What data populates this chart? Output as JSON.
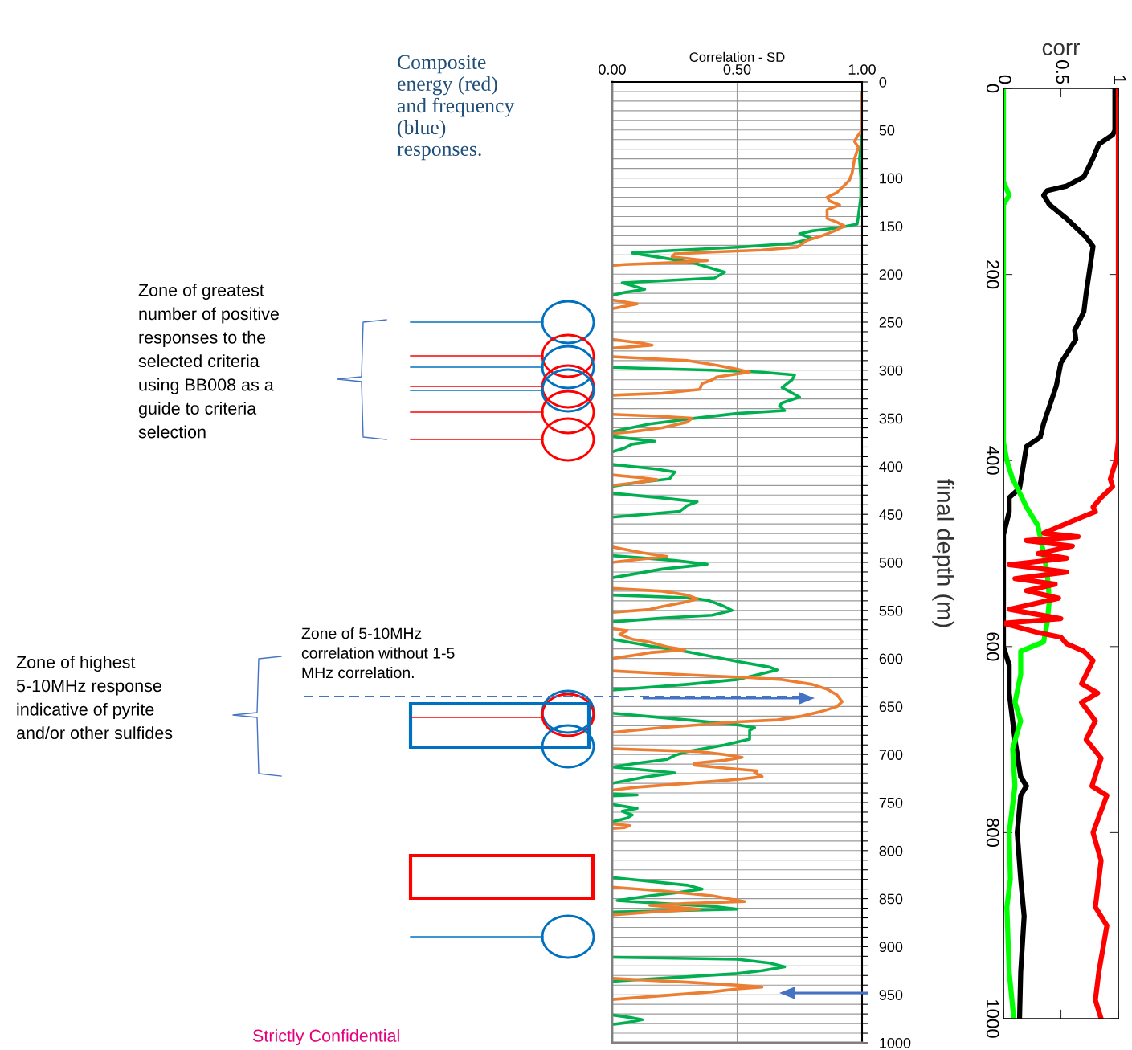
{
  "chart_data": [
    {
      "type": "line",
      "orientation": "horizontal",
      "xlabel": "Correlation - SD",
      "xlim": [
        0,
        1
      ],
      "xticks": [
        {
          "value": 0,
          "label": "0.00"
        },
        {
          "value": 0.5,
          "label": "0.50"
        },
        {
          "value": 1,
          "label": "1.00"
        }
      ],
      "ylim": [
        1000,
        0
      ],
      "yticks": [
        0,
        {
          "value": 10,
          "label": null
        },
        {
          "value": 20,
          "label": null
        },
        {
          "value": 30,
          "label": null
        },
        {
          "value": 40,
          "label": null
        },
        50,
        {
          "value": 60,
          "label": null
        },
        {
          "value": 70,
          "label": null
        },
        {
          "value": 80,
          "label": null
        },
        {
          "value": 90,
          "label": null
        },
        100,
        {
          "value": 110,
          "label": null
        },
        {
          "value": 120,
          "label": null
        },
        {
          "value": 130,
          "label": null
        },
        {
          "value": 140,
          "label": null
        },
        150,
        {
          "value": 160,
          "label": null
        },
        {
          "value": 170,
          "label": null
        },
        {
          "value": 180,
          "label": null
        },
        {
          "value": 190,
          "label": null
        },
        200,
        {
          "value": 210,
          "label": null
        },
        {
          "value": 220,
          "label": null
        },
        {
          "value": 230,
          "label": null
        },
        {
          "value": 240,
          "label": null
        },
        250,
        {
          "value": 260,
          "label": null
        },
        {
          "value": 270,
          "label": null
        },
        {
          "value": 280,
          "label": null
        },
        {
          "value": 290,
          "label": null
        },
        300,
        {
          "value": 310,
          "label": null
        },
        {
          "value": 320,
          "label": null
        },
        {
          "value": 330,
          "label": null
        },
        {
          "value": 340,
          "label": null
        },
        350,
        {
          "value": 360,
          "label": null
        },
        {
          "value": 370,
          "label": null
        },
        {
          "value": 380,
          "label": null
        },
        {
          "value": 390,
          "label": null
        },
        400,
        {
          "value": 410,
          "label": null
        },
        {
          "value": 420,
          "label": null
        },
        {
          "value": 430,
          "label": null
        },
        {
          "value": 440,
          "label": null
        },
        450,
        {
          "value": 460,
          "label": null
        },
        {
          "value": 470,
          "label": null
        },
        {
          "value": 480,
          "label": null
        },
        {
          "value": 490,
          "label": null
        },
        500,
        {
          "value": 510,
          "label": null
        },
        {
          "value": 520,
          "label": null
        },
        {
          "value": 530,
          "label": null
        },
        {
          "value": 540,
          "label": null
        },
        550,
        {
          "value": 560,
          "label": null
        },
        {
          "value": 570,
          "label": null
        },
        {
          "value": 580,
          "label": null
        },
        {
          "value": 590,
          "label": null
        },
        600,
        {
          "value": 610,
          "label": null
        },
        {
          "value": 620,
          "label": null
        },
        {
          "value": 630,
          "label": null
        },
        {
          "value": 640,
          "label": null
        },
        650,
        {
          "value": 660,
          "label": null
        },
        {
          "value": 670,
          "label": null
        },
        {
          "value": 680,
          "label": null
        },
        {
          "value": 690,
          "label": null
        },
        700,
        {
          "value": 710,
          "label": null
        },
        {
          "value": 720,
          "label": null
        },
        {
          "value": 730,
          "label": null
        },
        {
          "value": 740,
          "label": null
        },
        750,
        {
          "value": 760,
          "label": null
        },
        {
          "value": 770,
          "label": null
        },
        {
          "value": 780,
          "label": null
        },
        {
          "value": 790,
          "label": null
        },
        800,
        {
          "value": 810,
          "label": null
        },
        {
          "value": 820,
          "label": null
        },
        {
          "value": 830,
          "label": null
        },
        {
          "value": 840,
          "label": null
        },
        850,
        {
          "value": 860,
          "label": null
        },
        {
          "value": 870,
          "label": null
        },
        {
          "value": 880,
          "label": null
        },
        {
          "value": 890,
          "label": null
        },
        900,
        {
          "value": 910,
          "label": null
        },
        {
          "value": 920,
          "label": null
        },
        {
          "value": 930,
          "label": null
        },
        {
          "value": 940,
          "label": null
        },
        950,
        {
          "value": 960,
          "label": null
        },
        {
          "value": 970,
          "label": null
        },
        {
          "value": 980,
          "label": null
        },
        {
          "value": 990,
          "label": null
        },
        1000
      ],
      "grid": true,
      "series": [
        {
          "color": "#00b050",
          "x": [
            55,
            80,
            100,
            120,
            140,
            148,
            152,
            155,
            158,
            163,
            168,
            172,
            176,
            178,
            183,
            188,
            198,
            204,
            207,
            209,
            212,
            216,
            219,
            222,
            260,
            297,
            300,
            302,
            305,
            310,
            318,
            328,
            334,
            337,
            342,
            345,
            350,
            356,
            364,
            366,
            369,
            374,
            377,
            381,
            385,
            392,
            398,
            403,
            406,
            413,
            417,
            421,
            425,
            428,
            433,
            437,
            441,
            447,
            453,
            473,
            493,
            498,
            502,
            507,
            516,
            525,
            534,
            537,
            540,
            546,
            550,
            555,
            558,
            562,
            571,
            580,
            587,
            593,
            603,
            609,
            612,
            617,
            622,
            627,
            633,
            645,
            657,
            664,
            669,
            672,
            675,
            677,
            684,
            690,
            697,
            701,
            705,
            709,
            713,
            719,
            724,
            730,
            736,
            741,
            742,
            743,
            747,
            752,
            756,
            759,
            763,
            766,
            770,
            800,
            828,
            836,
            840,
            844,
            847,
            852,
            855,
            858,
            861,
            864,
            890,
            911,
            913,
            917,
            921,
            925,
            928,
            936,
            955,
            971,
            974,
            976,
            979,
            981
          ],
          "values": [
            1.0,
            0.99,
            0.995,
            0.995,
            0.985,
            0.98,
            0.9,
            0.8,
            0.75,
            0.8,
            0.72,
            0.5,
            0.2,
            0.08,
            0.2,
            0.32,
            0.45,
            0.41,
            0.2,
            0.04,
            0.08,
            0.13,
            0.05,
            0,
            null,
            0,
            0.4,
            0.6,
            0.73,
            0.72,
            0.68,
            0.75,
            0.68,
            0.67,
            0.69,
            0.5,
            0.33,
            0.15,
            0,
            null,
            0,
            0.17,
            0.08,
            0.05,
            0,
            null,
            0,
            0.18,
            0.25,
            0.23,
            0.1,
            0,
            null,
            0,
            0.2,
            0.34,
            0.3,
            0.27,
            0,
            null,
            0,
            0.25,
            0.38,
            0.2,
            0,
            null,
            0,
            0.32,
            0.39,
            0.45,
            0.48,
            0.4,
            0.2,
            0,
            null,
            0,
            0.15,
            0.3,
            0.5,
            0.63,
            0.66,
            0.58,
            0.5,
            0.3,
            0,
            null,
            0,
            0.3,
            0.5,
            0.57,
            0.55,
            0.55,
            0.55,
            0.45,
            0.3,
            0.25,
            0.22,
            0.1,
            0,
            0.25,
            0.12,
            0,
            null,
            0,
            0.1,
            0,
            null,
            0,
            0.1,
            0.04,
            0.08,
            0.06,
            0,
            null,
            0,
            0.3,
            0.36,
            0.25,
            0.15,
            0.02,
            0.2,
            0.4,
            0.5,
            0,
            null,
            0,
            0.5,
            0.63,
            0.69,
            0.6,
            0.5,
            0,
            null,
            0,
            0.08,
            0.12,
            0.06,
            0
          ]
        },
        {
          "color": "#ed7d31",
          "x": [
            10,
            30,
            50,
            57,
            62,
            68,
            80,
            95,
            102,
            110,
            115,
            120,
            124,
            128,
            133,
            142,
            146,
            150,
            155,
            160,
            165,
            172,
            175,
            177,
            179,
            182,
            186,
            188,
            190,
            191,
            209,
            227,
            231,
            234,
            236,
            252,
            268,
            272,
            274,
            276,
            277,
            282,
            286,
            290,
            295,
            299,
            302,
            304,
            307,
            310,
            314,
            320,
            324,
            326,
            336,
            346,
            348,
            350,
            354,
            360,
            364,
            366,
            388,
            409,
            412,
            414,
            417,
            420,
            452,
            484,
            490,
            494,
            497,
            500,
            514,
            527,
            530,
            534,
            538,
            542,
            546,
            549,
            552,
            560,
            569,
            571,
            575,
            580,
            583,
            588,
            591,
            594,
            597,
            600,
            606,
            613,
            617,
            620,
            622,
            627,
            632,
            638,
            645,
            650,
            655,
            660,
            664,
            666,
            668,
            672,
            677,
            685,
            694,
            697,
            700,
            703,
            706,
            709,
            711,
            714,
            717,
            719,
            723,
            726,
            730,
            734,
            737,
            755,
            772,
            774,
            776,
            777,
            808,
            838,
            842,
            847,
            853,
            855,
            857,
            859,
            861,
            864,
            867,
            900,
            933,
            937,
            940,
            942,
            944,
            947,
            951,
            955
          ],
          "values": [
            1.0,
            1.0,
            1.0,
            0.98,
            0.97,
            0.985,
            0.97,
            0.96,
            0.95,
            0.92,
            0.9,
            0.86,
            0.87,
            0.91,
            0.86,
            0.86,
            0.9,
            0.93,
            0.89,
            0.84,
            0.78,
            0.74,
            0.6,
            0.4,
            0.25,
            0.24,
            0.38,
            0.25,
            0.05,
            0,
            null,
            0,
            0.1,
            0.04,
            0,
            null,
            0,
            0.12,
            0.16,
            0.06,
            0,
            null,
            0,
            0.3,
            0.42,
            0.5,
            0.55,
            0.5,
            0.42,
            0.4,
            0.36,
            0.35,
            0.2,
            0,
            null,
            0,
            0.2,
            0.32,
            0.3,
            0.2,
            0.08,
            0,
            null,
            0,
            0.12,
            0.18,
            0.1,
            0,
            null,
            0,
            0.12,
            0.22,
            0.1,
            0,
            null,
            0,
            0.2,
            0.3,
            0.34,
            0.28,
            0.2,
            0.15,
            0,
            null,
            0,
            0.06,
            0.03,
            0.08,
            0.15,
            0.22,
            0.29,
            0.15,
            0.08,
            0,
            null,
            0,
            0.3,
            0.55,
            0.68,
            0.8,
            0.86,
            0.9,
            0.92,
            0.9,
            0.84,
            0.76,
            0.66,
            0.5,
            0.4,
            0.2,
            0,
            null,
            0,
            0.35,
            0.45,
            0.52,
            0.45,
            0.33,
            0.33,
            0.45,
            0.58,
            0.57,
            0.6,
            0.5,
            0.3,
            0.1,
            0,
            null,
            0,
            0.07,
            0.05,
            0,
            null,
            0,
            0.2,
            0.4,
            0.53,
            0.3,
            0.15,
            0.25,
            0.35,
            0.15,
            0,
            null,
            0,
            0.3,
            0.5,
            0.6,
            0.5,
            0.4,
            0.2,
            0
          ]
        }
      ],
      "annotations": [
        "Composite energy (red) and frequency (blue) responses.",
        "Zone of greatest number of positive responses to the selected criteria using BB008 as a guide to criteria selection",
        "Zone of 5-10MHz correlation without 1-5 MHz correlation.",
        "Zone of highest 5-10MHz response indicative of pyrite and/or other sulfides",
        "Strictly Confidential"
      ]
    },
    {
      "type": "line",
      "orientation": "horizontal",
      "xlabel": "corr",
      "ylabel": "final depth (m)",
      "xlim": [
        0,
        1
      ],
      "xticks": [
        0,
        0.5,
        1
      ],
      "ylim": [
        1000,
        0
      ],
      "yticks": [
        0,
        200,
        400,
        600,
        800,
        1000
      ],
      "series": [
        {
          "color": "#000000",
          "x": [
            0,
            45,
            50,
            60,
            75,
            95,
            105,
            110,
            115,
            125,
            140,
            160,
            170,
            195,
            220,
            240,
            260,
            270,
            295,
            320,
            360,
            375,
            385,
            400,
            430,
            440,
            455,
            480,
            550,
            600,
            620,
            650,
            700,
            740,
            750,
            760,
            800,
            850,
            890,
            950,
            1000
          ],
          "values": [
            0.97,
            0.97,
            0.95,
            0.83,
            0.78,
            0.7,
            0.55,
            0.38,
            0.35,
            0.4,
            0.55,
            0.72,
            0.78,
            0.75,
            0.72,
            0.7,
            0.62,
            0.63,
            0.5,
            0.46,
            0.35,
            0.32,
            0.2,
            0.18,
            0.14,
            0.05,
            0.05,
            0,
            0,
            0,
            0.05,
            0.05,
            0.1,
            0.15,
            0.2,
            0.15,
            0.12,
            0.15,
            0.18,
            0.15,
            0.14
          ]
        },
        {
          "color": "#00ff00",
          "x": [
            0,
            100,
            115,
            125,
            380,
            400,
            420,
            437,
            450,
            470,
            500,
            520,
            550,
            575,
            595,
            605,
            630,
            660,
            680,
            710,
            750,
            800,
            850,
            880,
            950,
            1000
          ],
          "values": [
            0,
            0,
            0.05,
            0,
            0,
            0.03,
            0.08,
            0.15,
            0.2,
            0.3,
            0.35,
            0.38,
            0.4,
            0.38,
            0.35,
            0.15,
            0.15,
            0.1,
            0.15,
            0.08,
            0.1,
            0.05,
            0.06,
            0.03,
            0.05,
            0.09
          ]
        },
        {
          "color": "#ff0000",
          "x": [
            0,
            380,
            400,
            420,
            428,
            440,
            450,
            455,
            460,
            478,
            482,
            486,
            492,
            500,
            505,
            512,
            520,
            527,
            533,
            540,
            548,
            560,
            570,
            575,
            585,
            590,
            597,
            605,
            615,
            640,
            650,
            660,
            680,
            700,
            720,
            750,
            760,
            800,
            830,
            880,
            900,
            950,
            980,
            1000
          ],
          "values": [
            1.0,
            1.0,
            0.98,
            0.93,
            0.95,
            0.85,
            0.78,
            0.8,
            0.7,
            0.35,
            0.65,
            0.2,
            0.6,
            0.3,
            0.55,
            0.05,
            0.55,
            0.1,
            0.45,
            0.2,
            0.48,
            0.05,
            0.5,
            0.0,
            0.3,
            0.5,
            0.55,
            0.7,
            0.78,
            0.68,
            0.82,
            0.68,
            0.8,
            0.72,
            0.85,
            0.77,
            0.9,
            0.78,
            0.85,
            0.8,
            0.9,
            0.83,
            0.8,
            0.85
          ]
        }
      ]
    }
  ]
}
